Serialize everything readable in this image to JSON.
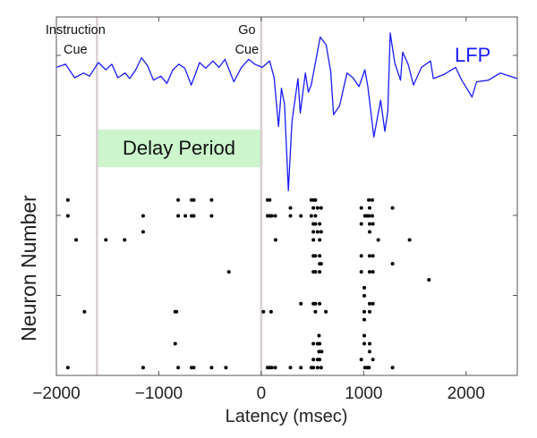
{
  "chart_data": {
    "type": "scatter",
    "xlabel": "Latency (msec)",
    "ylabel": "Neuron Number",
    "xlim": [
      -2000,
      2500
    ],
    "ylim": [
      0,
      4.48
    ],
    "xticks": [
      -2000,
      -1000,
      0,
      1000,
      2000
    ],
    "xtick_labels": [
      "−2000",
      "−1000",
      "0",
      "1000",
      "2000"
    ],
    "yticks": [
      1,
      2,
      3,
      4
    ],
    "grid": false,
    "colors": {
      "lfp": "#1a1aff",
      "spike": "#000000",
      "delay_band": "#ccf5cc",
      "event_line": "#d9cfd2"
    },
    "events": [
      {
        "label_lines": [
          "Instruction",
          "Cue"
        ],
        "latency": -1604
      },
      {
        "label_lines": [
          "Go",
          "Cue"
        ],
        "latency": 0
      }
    ],
    "delay_period": {
      "label": "Delay Period",
      "start": -1604,
      "end": 0
    },
    "lfp": {
      "name": "LFP",
      "points": [
        [
          -2000,
          3.85
        ],
        [
          -1910,
          3.89
        ],
        [
          -1822,
          3.72
        ],
        [
          -1735,
          3.78
        ],
        [
          -1677,
          3.74
        ],
        [
          -1590,
          3.91
        ],
        [
          -1517,
          3.82
        ],
        [
          -1459,
          3.89
        ],
        [
          -1400,
          3.72
        ],
        [
          -1328,
          3.78
        ],
        [
          -1284,
          3.71
        ],
        [
          -1226,
          3.82
        ],
        [
          -1168,
          3.97
        ],
        [
          -1110,
          3.87
        ],
        [
          -1052,
          3.69
        ],
        [
          -980,
          3.74
        ],
        [
          -921,
          3.65
        ],
        [
          -863,
          3.82
        ],
        [
          -805,
          3.89
        ],
        [
          -746,
          3.84
        ],
        [
          -683,
          3.63
        ],
        [
          -602,
          3.91
        ],
        [
          -543,
          3.84
        ],
        [
          -471,
          3.93
        ],
        [
          -412,
          3.85
        ],
        [
          -354,
          3.95
        ],
        [
          -267,
          3.67
        ],
        [
          -194,
          3.85
        ],
        [
          -122,
          3.95
        ],
        [
          -64,
          3.89
        ],
        [
          9,
          3.85
        ],
        [
          82,
          3.93
        ],
        [
          126,
          3.72
        ],
        [
          169,
          3.11
        ],
        [
          198,
          3.59
        ],
        [
          227,
          3.39
        ],
        [
          265,
          2.31
        ],
        [
          300,
          3.17
        ],
        [
          358,
          3.71
        ],
        [
          381,
          3.28
        ],
        [
          431,
          3.78
        ],
        [
          460,
          3.54
        ],
        [
          488,
          3.63
        ],
        [
          576,
          4.23
        ],
        [
          634,
          4.13
        ],
        [
          678,
          3.8
        ],
        [
          706,
          3.26
        ],
        [
          765,
          3.37
        ],
        [
          837,
          3.78
        ],
        [
          896,
          3.72
        ],
        [
          954,
          3.61
        ],
        [
          1012,
          3.82
        ],
        [
          1041,
          3.61
        ],
        [
          1099,
          2.98
        ],
        [
          1166,
          3.44
        ],
        [
          1207,
          3.05
        ],
        [
          1236,
          3.3
        ],
        [
          1259,
          4.28
        ],
        [
          1303,
          3.91
        ],
        [
          1360,
          3.69
        ],
        [
          1381,
          4.04
        ],
        [
          1434,
          3.89
        ],
        [
          1486,
          3.63
        ],
        [
          1564,
          3.85
        ],
        [
          1652,
          3.93
        ],
        [
          1680,
          3.71
        ],
        [
          1782,
          3.76
        ],
        [
          1898,
          3.85
        ],
        [
          1957,
          3.69
        ],
        [
          2058,
          3.48
        ],
        [
          2102,
          3.67
        ],
        [
          2218,
          3.69
        ],
        [
          2334,
          3.78
        ],
        [
          2500,
          3.71
        ]
      ]
    },
    "raster": [
      {
        "neuron": 22,
        "spikes": [
          -1888,
          -811,
          -680,
          -659,
          -485,
          62,
          82,
          489,
          509,
          529,
          1050,
          1084
        ]
      },
      {
        "neuron": 21,
        "spikes": [
          285,
          509,
          550,
          585,
          977,
          1058,
          1282
        ]
      },
      {
        "neuron": 20,
        "spikes": [
          -1888,
          -1153,
          -811,
          -741,
          -680,
          -659,
          -485,
          62,
          82,
          102,
          137,
          285,
          387,
          489,
          529,
          1012,
          1032,
          1052,
          1084
        ]
      },
      {
        "neuron": 19,
        "spikes": [
          509,
          529,
          570,
          977,
          1058,
          1090
        ]
      },
      {
        "neuron": 18,
        "spikes": [
          -1153,
          509,
          550,
          585,
          1058
        ]
      },
      {
        "neuron": 17,
        "spikes": [
          -1807,
          -1517,
          -1334,
          140,
          509,
          570,
          1143,
          1448
        ]
      },
      {
        "neuron": 16,
        "spikes": []
      },
      {
        "neuron": 15,
        "spikes": [
          509,
          529,
          570,
          977,
          1058,
          1090
        ]
      },
      {
        "neuron": 14,
        "spikes": [
          570,
          585,
          1282
        ]
      },
      {
        "neuron": 13,
        "spikes": [
          -316,
          509,
          529,
          570,
          977,
          1058,
          1090
        ]
      },
      {
        "neuron": 12,
        "spikes": [
          1637
        ]
      },
      {
        "neuron": 11,
        "spikes": [
          1006
        ]
      },
      {
        "neuron": 10,
        "spikes": [
          1006
        ]
      },
      {
        "neuron": 9,
        "spikes": [
          387,
          509,
          529,
          570,
          1058,
          1090
        ]
      },
      {
        "neuron": 8,
        "spikes": [
          -1726,
          -840,
          -828,
          21,
          96,
          529,
          631,
          1006,
          1058
        ]
      },
      {
        "neuron": 7,
        "spikes": [
          1006
        ]
      },
      {
        "neuron": 6,
        "spikes": []
      },
      {
        "neuron": 5,
        "spikes": [
          564,
          1006
        ]
      },
      {
        "neuron": 4,
        "spikes": [
          -840,
          509,
          550,
          570,
          1006,
          1058
        ]
      },
      {
        "neuron": 3,
        "spikes": [
          564,
          590,
          1058
        ]
      },
      {
        "neuron": 2,
        "spikes": [
          509,
          550,
          570,
          977,
          1090
        ]
      },
      {
        "neuron": 1,
        "spikes": [
          -1888,
          -1153,
          -811,
          -680,
          -659,
          -485,
          -345,
          62,
          82,
          102,
          137,
          285,
          387,
          489,
          509,
          550,
          585,
          1012,
          1032,
          1052,
          1282
        ]
      }
    ]
  }
}
